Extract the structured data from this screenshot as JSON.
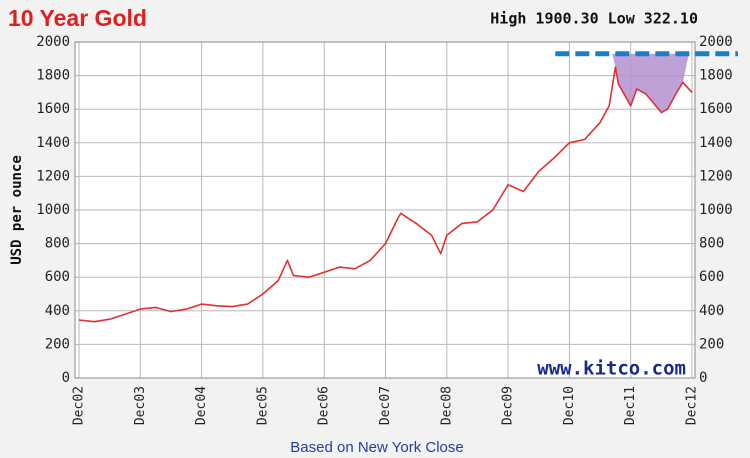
{
  "chart_data": {
    "type": "line",
    "title": "10 Year Gold",
    "subtitle": "High 1900.30 Low 322.10",
    "y_label": "USD per ounce",
    "footer": "Based on New York Close",
    "watermark": "www.kitco.com",
    "color": "#e03030",
    "x": [
      0,
      0.25,
      0.5,
      0.75,
      1,
      1.25,
      1.5,
      1.75,
      2,
      2.25,
      2.5,
      2.75,
      3,
      3.25,
      3.4,
      3.5,
      3.75,
      4,
      4.25,
      4.5,
      4.75,
      5,
      5.2,
      5.25,
      5.5,
      5.75,
      5.9,
      6,
      6.25,
      6.5,
      6.75,
      7,
      7.25,
      7.5,
      7.75,
      8,
      8.25,
      8.5,
      8.65,
      8.75,
      8.8,
      9,
      9.1,
      9.25,
      9.5,
      9.6,
      9.75,
      9.85,
      10
    ],
    "values": [
      345,
      335,
      350,
      380,
      410,
      420,
      395,
      410,
      440,
      430,
      425,
      440,
      500,
      580,
      700,
      610,
      600,
      630,
      660,
      650,
      700,
      800,
      950,
      980,
      920,
      850,
      740,
      850,
      920,
      930,
      1000,
      1150,
      1110,
      1230,
      1310,
      1400,
      1420,
      1520,
      1620,
      1850,
      1750,
      1620,
      1720,
      1690,
      1580,
      1600,
      1700,
      1760,
      1700
    ],
    "xlim": [
      0,
      10
    ],
    "xticks": [
      {
        "value": 0,
        "label": "Dec02"
      },
      {
        "value": 1,
        "label": "Dec03"
      },
      {
        "value": 2,
        "label": "Dec04"
      },
      {
        "value": 3,
        "label": "Dec05"
      },
      {
        "value": 4,
        "label": "Dec06"
      },
      {
        "value": 5,
        "label": "Dec07"
      },
      {
        "value": 6,
        "label": "Dec08"
      },
      {
        "value": 7,
        "label": "Dec09"
      },
      {
        "value": 8,
        "label": "Dec10"
      },
      {
        "value": 9,
        "label": "Dec11"
      },
      {
        "value": 10,
        "label": "Dec12"
      }
    ],
    "ylim": [
      0,
      2000
    ],
    "yticks": [
      0,
      200,
      400,
      600,
      800,
      1000,
      1200,
      1400,
      1600,
      1800,
      2000
    ],
    "y2lim": [
      0,
      2000
    ],
    "y2ticks": [
      0,
      200,
      400,
      600,
      800,
      1000,
      1200,
      1400,
      1600,
      1800,
      2000
    ],
    "grid": true,
    "reference_line": {
      "value": 1930,
      "x": [
        7.77,
        10.75
      ],
      "color": "#1a7fc8"
    },
    "highlight": {
      "x": [
        8.7,
        9.95
      ],
      "color": "#b48fd0"
    }
  }
}
